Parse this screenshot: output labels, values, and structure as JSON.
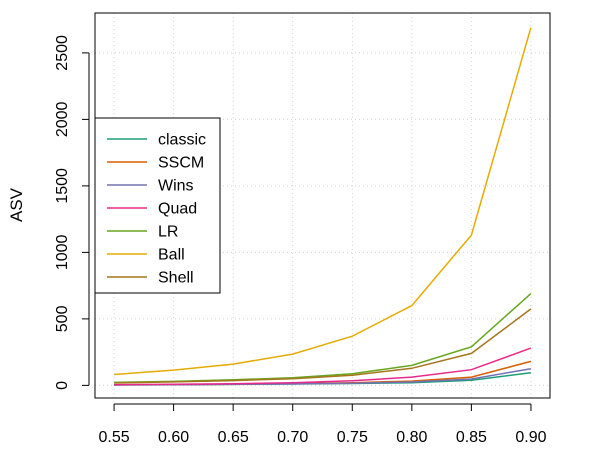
{
  "chart_data": {
    "type": "line",
    "title": "",
    "xlabel": "",
    "ylabel": "ASV",
    "x": [
      0.55,
      0.6,
      0.65,
      0.7,
      0.75,
      0.8,
      0.85,
      0.9
    ],
    "x_tick_labels": [
      "0.55",
      "0.60",
      "0.65",
      "0.70",
      "0.75",
      "0.80",
      "0.85",
      "0.90"
    ],
    "y_ticks": [
      0,
      500,
      1000,
      1500,
      2000,
      2500
    ],
    "y_tick_labels": [
      "0",
      "500",
      "1000",
      "1500",
      "2000",
      "2500"
    ],
    "xlim": [
      0.534,
      0.916
    ],
    "ylim": [
      -95,
      2800
    ],
    "grid": true,
    "legend_position": "left",
    "series": [
      {
        "name": "classic",
        "color": "#1b9e77",
        "values": [
          3,
          5,
          7,
          10,
          14,
          20,
          38,
          95
        ]
      },
      {
        "name": "SSCM",
        "color": "#d95f02",
        "values": [
          4,
          6,
          9,
          13,
          20,
          32,
          62,
          180
        ]
      },
      {
        "name": "Wins",
        "color": "#7570b3",
        "values": [
          3,
          5,
          8,
          11,
          16,
          25,
          48,
          125
        ]
      },
      {
        "name": "Quad",
        "color": "#e7298a",
        "values": [
          5,
          8,
          12,
          20,
          34,
          62,
          118,
          280
        ]
      },
      {
        "name": "LR",
        "color": "#66a61e",
        "values": [
          22,
          30,
          42,
          58,
          88,
          150,
          290,
          690
        ]
      },
      {
        "name": "Ball",
        "color": "#e6ab02",
        "values": [
          82,
          115,
          160,
          235,
          370,
          600,
          1130,
          2690
        ]
      },
      {
        "name": "Shell",
        "color": "#a6761d",
        "values": [
          18,
          26,
          36,
          50,
          76,
          128,
          240,
          575
        ]
      }
    ]
  }
}
